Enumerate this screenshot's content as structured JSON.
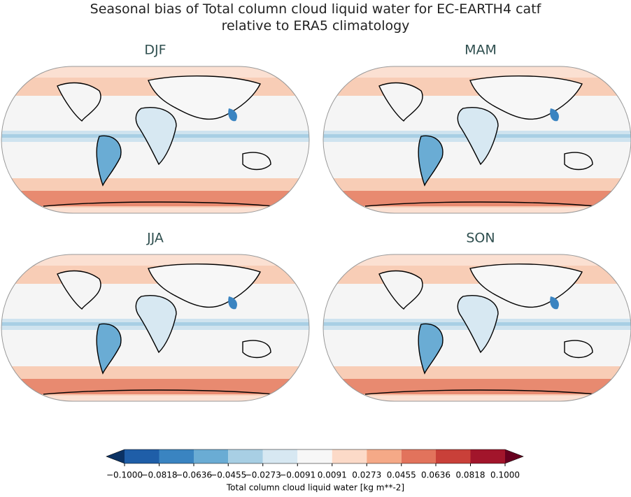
{
  "title": "Seasonal bias of Total column cloud liquid water for EC-EARTH4 catf\nrelative to ERA5 climatology",
  "panels": [
    {
      "title": "DJF"
    },
    {
      "title": "MAM"
    },
    {
      "title": "JJA"
    },
    {
      "title": "SON"
    }
  ],
  "colorbar": {
    "label": "Total column cloud liquid water [kg m**-2]",
    "lim": [
      -0.1,
      0.1
    ],
    "ticks": [
      {
        "value": -0.1,
        "label": "−0.1000"
      },
      {
        "value": -0.0818,
        "label": "−0.0818"
      },
      {
        "value": -0.0636,
        "label": "−0.0636"
      },
      {
        "value": -0.0455,
        "label": "−0.0455"
      },
      {
        "value": -0.0273,
        "label": "−0.0273"
      },
      {
        "value": -0.0091,
        "label": "−0.0091"
      },
      {
        "value": 0.0091,
        "label": "0.0091"
      },
      {
        "value": 0.0273,
        "label": "0.0273"
      },
      {
        "value": 0.0455,
        "label": "0.0455"
      },
      {
        "value": 0.0636,
        "label": "0.0636"
      },
      {
        "value": 0.0818,
        "label": "0.0818"
      },
      {
        "value": 0.1,
        "label": "0.1000"
      }
    ],
    "colors": [
      "#1f5ea8",
      "#3a84c1",
      "#6aacd4",
      "#a8cfe4",
      "#d7e8f2",
      "#f7f7f7",
      "#fcdac8",
      "#f5a987",
      "#e2735c",
      "#c94039",
      "#a2152b"
    ],
    "under_color": "#0b3264",
    "over_color": "#67001f"
  }
}
